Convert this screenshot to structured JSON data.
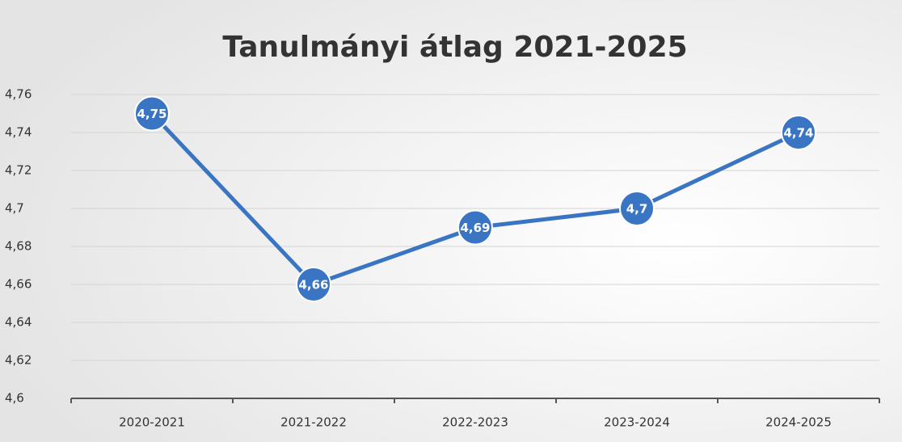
{
  "chart_data": {
    "type": "line",
    "title": "Tanulmányi átlag 2021-2025",
    "categories": [
      "2020-2021",
      "2021-2022",
      "2022-2023",
      "2023-2024",
      "2024-2025"
    ],
    "series": [
      {
        "name": "Tanulmányi átlag",
        "color": "#3a75c4",
        "values": [
          4.75,
          4.66,
          4.69,
          4.7,
          4.74
        ],
        "value_labels": [
          "4,75",
          "4,66",
          "4,69",
          "4,7",
          "4,74"
        ]
      }
    ],
    "ylim": [
      4.6,
      4.76
    ],
    "yticks": [
      {
        "value": 4.6,
        "label": "4,6"
      },
      {
        "value": 4.62,
        "label": "4,62"
      },
      {
        "value": 4.64,
        "label": "4,64"
      },
      {
        "value": 4.66,
        "label": "4,66"
      },
      {
        "value": 4.68,
        "label": "4,68"
      },
      {
        "value": 4.7,
        "label": "4,7"
      },
      {
        "value": 4.72,
        "label": "4,72"
      },
      {
        "value": 4.74,
        "label": "4,74"
      },
      {
        "value": 4.76,
        "label": "4,76"
      }
    ],
    "grid": true
  }
}
